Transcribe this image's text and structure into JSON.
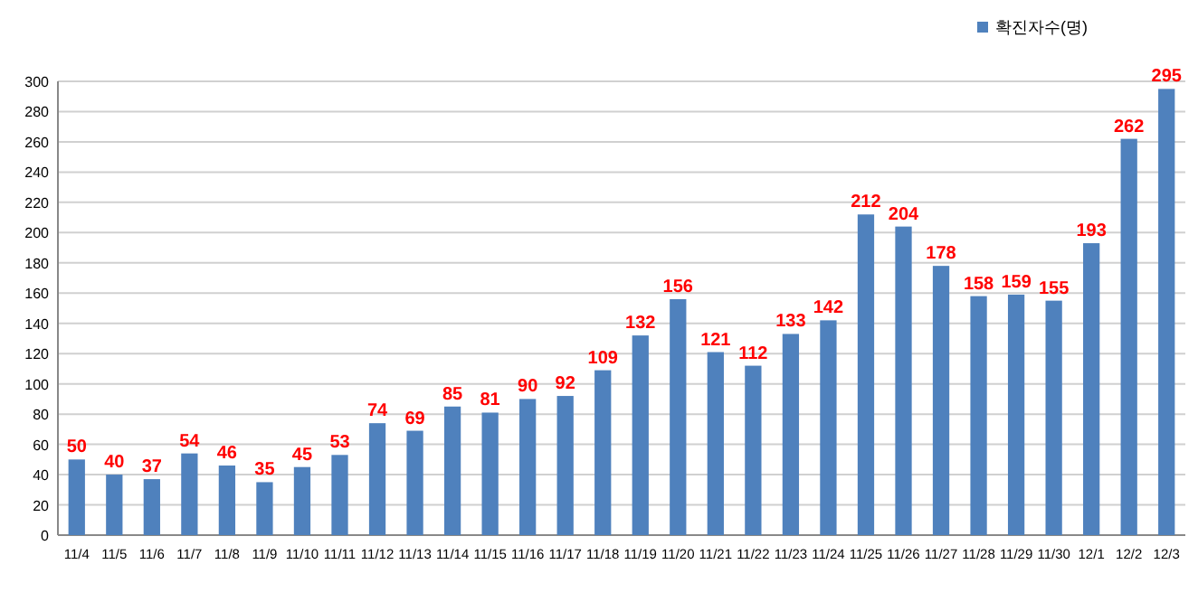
{
  "chart_data": {
    "type": "bar",
    "categories": [
      "11/4",
      "11/5",
      "11/6",
      "11/7",
      "11/8",
      "11/9",
      "11/10",
      "11/11",
      "11/12",
      "11/13",
      "11/14",
      "11/15",
      "11/16",
      "11/17",
      "11/18",
      "11/19",
      "11/20",
      "11/21",
      "11/22",
      "11/23",
      "11/24",
      "11/25",
      "11/26",
      "11/27",
      "11/28",
      "11/29",
      "11/30",
      "12/1",
      "12/2",
      "12/3"
    ],
    "series": [
      {
        "name": "확진자수(명)",
        "color": "#4f81bd",
        "values": [
          50,
          40,
          37,
          54,
          46,
          35,
          45,
          53,
          74,
          69,
          85,
          81,
          90,
          92,
          109,
          132,
          156,
          121,
          112,
          133,
          142,
          212,
          204,
          178,
          158,
          159,
          155,
          193,
          262,
          295
        ]
      }
    ],
    "ylim": [
      0,
      300
    ],
    "yticks": [
      0,
      20,
      40,
      60,
      80,
      100,
      120,
      140,
      160,
      180,
      200,
      220,
      240,
      260,
      280,
      300
    ],
    "grid": "y",
    "legend": "top right",
    "data_labels": true
  }
}
